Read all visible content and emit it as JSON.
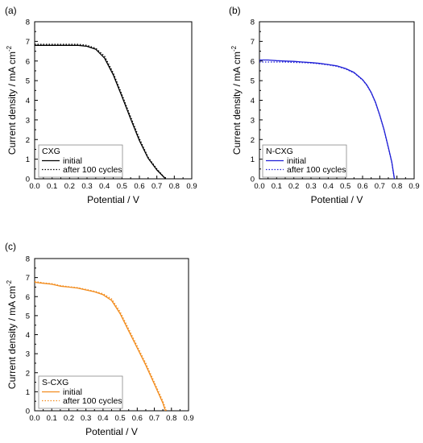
{
  "chart_data": [
    {
      "type": "line",
      "panel_label": "(a)",
      "xlabel": "Potential / V",
      "ylabel_main": "Current density / mA cm",
      "ylabel_sup": "-2",
      "xlim": [
        0,
        0.9
      ],
      "ylim": [
        0,
        8
      ],
      "xticks": [
        "0.0",
        "0.1",
        "0.2",
        "0.3",
        "0.4",
        "0.5",
        "0.6",
        "0.7",
        "0.8",
        "0.9"
      ],
      "yticks": [
        "0",
        "1",
        "2",
        "3",
        "4",
        "5",
        "6",
        "7",
        "8"
      ],
      "color": "#000000",
      "legend_title": "CXG",
      "series": [
        {
          "name": "initial",
          "style": "solid",
          "x": [
            0.0,
            0.05,
            0.1,
            0.15,
            0.2,
            0.25,
            0.3,
            0.35,
            0.4,
            0.45,
            0.5,
            0.55,
            0.6,
            0.65,
            0.7,
            0.75
          ],
          "y": [
            6.8,
            6.8,
            6.8,
            6.8,
            6.8,
            6.8,
            6.75,
            6.6,
            6.15,
            5.3,
            4.2,
            3.05,
            1.95,
            1.05,
            0.45,
            0.0
          ]
        },
        {
          "name": "after 100 cycles",
          "style": "dotted",
          "x": [
            0.0,
            0.05,
            0.1,
            0.15,
            0.2,
            0.25,
            0.3,
            0.35,
            0.4,
            0.45,
            0.5,
            0.55,
            0.6,
            0.65,
            0.7,
            0.75
          ],
          "y": [
            6.85,
            6.85,
            6.85,
            6.85,
            6.85,
            6.85,
            6.8,
            6.65,
            6.25,
            5.4,
            4.3,
            3.15,
            2.05,
            1.1,
            0.5,
            0.0
          ]
        }
      ]
    },
    {
      "type": "line",
      "panel_label": "(b)",
      "xlabel": "Potential / V",
      "ylabel_main": "Current density / mA cm",
      "ylabel_sup": "-2",
      "xlim": [
        0,
        0.9
      ],
      "ylim": [
        0,
        8
      ],
      "xticks": [
        "0.0",
        "0.1",
        "0.2",
        "0.3",
        "0.4",
        "0.5",
        "0.6",
        "0.7",
        "0.8",
        "0.9"
      ],
      "yticks": [
        "0",
        "1",
        "2",
        "3",
        "4",
        "5",
        "6",
        "7",
        "8"
      ],
      "color": "#1f1fd6",
      "legend_title": "N-CXG",
      "series": [
        {
          "name": "initial",
          "style": "solid",
          "x": [
            0.0,
            0.05,
            0.1,
            0.15,
            0.2,
            0.25,
            0.3,
            0.35,
            0.4,
            0.45,
            0.5,
            0.55,
            0.6,
            0.625,
            0.65,
            0.675,
            0.7,
            0.725,
            0.75,
            0.77,
            0.785
          ],
          "y": [
            6.05,
            6.05,
            6.02,
            6.0,
            5.98,
            5.95,
            5.92,
            5.88,
            5.82,
            5.75,
            5.62,
            5.42,
            5.05,
            4.78,
            4.4,
            3.9,
            3.25,
            2.5,
            1.6,
            0.85,
            0.0
          ]
        },
        {
          "name": "after 100 cycles",
          "style": "dotted",
          "x": [
            0.0,
            0.05,
            0.1,
            0.15,
            0.2,
            0.25,
            0.3,
            0.35,
            0.4,
            0.45,
            0.5,
            0.55,
            0.6,
            0.625,
            0.65,
            0.675,
            0.7,
            0.725,
            0.75,
            0.77,
            0.785
          ],
          "y": [
            5.95,
            5.95,
            5.95,
            5.95,
            5.93,
            5.92,
            5.9,
            5.86,
            5.8,
            5.73,
            5.6,
            5.4,
            5.03,
            4.76,
            4.38,
            3.88,
            3.23,
            2.48,
            1.58,
            0.83,
            0.0
          ]
        }
      ]
    },
    {
      "type": "line",
      "panel_label": "(c)",
      "xlabel": "Potential / V",
      "ylabel_main": "Current density / mA cm",
      "ylabel_sup": "-2",
      "xlim": [
        0,
        0.9
      ],
      "ylim": [
        0,
        8
      ],
      "xticks": [
        "0.0",
        "0.1",
        "0.2",
        "0.3",
        "0.4",
        "0.5",
        "0.6",
        "0.7",
        "0.8",
        "0.9"
      ],
      "yticks": [
        "0",
        "1",
        "2",
        "3",
        "4",
        "5",
        "6",
        "7",
        "8"
      ],
      "color": "#f28c1e",
      "legend_title": "S-CXG",
      "series": [
        {
          "name": "initial",
          "style": "solid",
          "x": [
            0.0,
            0.05,
            0.1,
            0.15,
            0.2,
            0.25,
            0.3,
            0.35,
            0.4,
            0.45,
            0.5,
            0.55,
            0.6,
            0.65,
            0.7,
            0.75,
            0.765
          ],
          "y": [
            6.75,
            6.7,
            6.65,
            6.55,
            6.5,
            6.45,
            6.35,
            6.25,
            6.1,
            5.8,
            5.1,
            4.2,
            3.3,
            2.4,
            1.4,
            0.4,
            0.0
          ]
        },
        {
          "name": "after 100 cycles",
          "style": "dotted",
          "x": [
            0.0,
            0.05,
            0.1,
            0.15,
            0.2,
            0.25,
            0.3,
            0.35,
            0.4,
            0.45,
            0.5,
            0.55,
            0.6,
            0.65,
            0.7,
            0.75,
            0.77
          ],
          "y": [
            6.8,
            6.72,
            6.68,
            6.58,
            6.52,
            6.47,
            6.38,
            6.28,
            6.15,
            5.88,
            5.2,
            4.3,
            3.4,
            2.5,
            1.5,
            0.5,
            0.0
          ]
        }
      ]
    }
  ]
}
